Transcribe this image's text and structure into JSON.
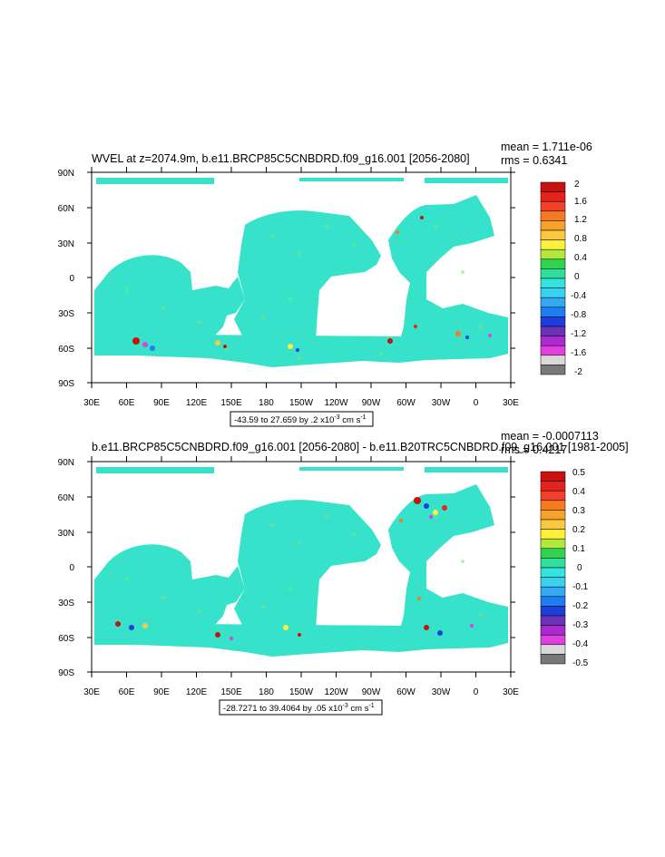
{
  "chart_data": [
    {
      "type": "heatmap",
      "title": "WVEL at z=2074.9m, b.e11.BRCP85C5CNBDRD.f09_g16.001 [2056-2080]",
      "stats": [
        "mean = 1.711e-06",
        "rms = 0.6341"
      ],
      "range_note": "-43.59 to 27.659 by .2 x10",
      "range_note_exp": "-3",
      "range_note_unit": " cm s",
      "range_note_unit_exp": "-1",
      "x_ticks": [
        "30E",
        "60E",
        "90E",
        "120E",
        "150E",
        "180",
        "150W",
        "120W",
        "90W",
        "60W",
        "30W",
        "0",
        "30E"
      ],
      "y_ticks": [
        "90N",
        "60N",
        "30N",
        "0",
        "30S",
        "60S",
        "90S"
      ],
      "xlim": [
        30,
        390
      ],
      "ylim": [
        -90,
        90
      ],
      "colorbar": {
        "labels": [
          "2",
          "1.6",
          "1.2",
          "0.8",
          "0.4",
          "0",
          "-0.4",
          "-0.8",
          "-1.2",
          "-1.6",
          "-2"
        ],
        "colors": [
          "#c8120f",
          "#e4231e",
          "#f2402a",
          "#f57a21",
          "#f7a22a",
          "#fbc93c",
          "#fff03c",
          "#b2e83e",
          "#2fd34e",
          "#2ee09a",
          "#34e4dc",
          "#38d1ef",
          "#33a9f4",
          "#1e7df1",
          "#1c3fdc",
          "#6a32b8",
          "#aa2ad0",
          "#e040e0",
          "#d9d9d9",
          "#787878"
        ]
      }
    },
    {
      "type": "heatmap",
      "title": "b.e11.BRCP85C5CNBDRD.f09_g16.001 [2056-2080] - b.e11.B20TRC5CNBDRD.f09_g16.001 [1981-2005]",
      "stats": [
        "mean = -0.0007113",
        "rms = 0.4217"
      ],
      "range_note": "-28.7271 to 39.4064 by .05 x10",
      "range_note_exp": "-3",
      "range_note_unit": " cm s",
      "range_note_unit_exp": "-1",
      "x_ticks": [
        "30E",
        "60E",
        "90E",
        "120E",
        "150E",
        "180",
        "150W",
        "120W",
        "90W",
        "60W",
        "30W",
        "0",
        "30E"
      ],
      "y_ticks": [
        "90N",
        "60N",
        "30N",
        "0",
        "30S",
        "60S",
        "90S"
      ],
      "xlim": [
        30,
        390
      ],
      "ylim": [
        -90,
        90
      ],
      "colorbar": {
        "labels": [
          "0.5",
          "0.4",
          "0.3",
          "0.2",
          "0.1",
          "0",
          "-0.1",
          "-0.2",
          "-0.3",
          "-0.4",
          "-0.5"
        ],
        "colors": [
          "#c8120f",
          "#e4231e",
          "#f2402a",
          "#f57a21",
          "#f7a22a",
          "#fbc93c",
          "#fff03c",
          "#b2e83e",
          "#2fd34e",
          "#2ee09a",
          "#34e4dc",
          "#38d1ef",
          "#33a9f4",
          "#1e7df1",
          "#1c3fdc",
          "#6a32b8",
          "#aa2ad0",
          "#e040e0",
          "#d9d9d9",
          "#787878"
        ]
      }
    }
  ]
}
